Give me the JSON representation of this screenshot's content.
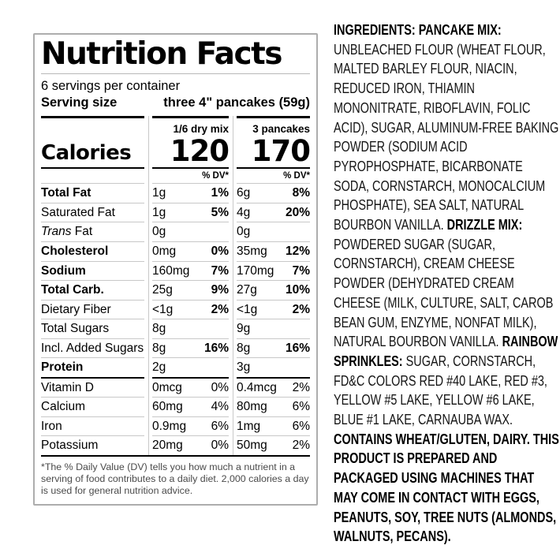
{
  "nutrition_label": {
    "title": "Nutrition Facts",
    "servings_per_container": "6 servings per container",
    "serving_size_label": "Serving size",
    "serving_size_value": "three 4\" pancakes (59g)",
    "columns": [
      "1/6 dry mix",
      "3 pancakes"
    ],
    "calories_label": "Calories",
    "calories": [
      "120",
      "170"
    ],
    "dv_header": "% DV*",
    "rows": [
      {
        "name": "Total Fat",
        "bold": true,
        "indent": 0,
        "c1a": "1g",
        "c1dv": "1%",
        "c2a": "6g",
        "c2dv": "8%"
      },
      {
        "name": "Saturated Fat",
        "bold": false,
        "indent": 1,
        "c1a": "1g",
        "c1dv": "5%",
        "c2a": "4g",
        "c2dv": "20%"
      },
      {
        "name": "Fat",
        "name_italic": "Trans",
        "bold": false,
        "indent": 1,
        "c1a": "0g",
        "c1dv": "",
        "c2a": "0g",
        "c2dv": ""
      },
      {
        "name": "Cholesterol",
        "bold": true,
        "indent": 0,
        "c1a": "0mg",
        "c1dv": "0%",
        "c2a": "35mg",
        "c2dv": "12%"
      },
      {
        "name": "Sodium",
        "bold": true,
        "indent": 0,
        "c1a": "160mg",
        "c1dv": "7%",
        "c2a": "170mg",
        "c2dv": "7%"
      },
      {
        "name": "Total Carb.",
        "bold": true,
        "indent": 0,
        "c1a": "25g",
        "c1dv": "9%",
        "c2a": "27g",
        "c2dv": "10%"
      },
      {
        "name": "Dietary Fiber",
        "bold": false,
        "indent": 1,
        "c1a": "<1g",
        "c1dv": "2%",
        "c2a": "<1g",
        "c2dv": "2%"
      },
      {
        "name": "Total Sugars",
        "bold": false,
        "indent": 1,
        "c1a": "8g",
        "c1dv": "",
        "c2a": "9g",
        "c2dv": ""
      },
      {
        "name": "Incl. Added Sugars",
        "bold": false,
        "indent": 2,
        "c1a": "8g",
        "c1dv": "16%",
        "c2a": "8g",
        "c2dv": "16%"
      },
      {
        "name": "Protein",
        "bold": true,
        "indent": 0,
        "thick": true,
        "c1a": "2g",
        "c1dv": "",
        "c2a": "3g",
        "c2dv": ""
      }
    ],
    "vitamin_rows": [
      {
        "name": "Vitamin D",
        "c1a": "0mcg",
        "c1dv": "0%",
        "c2a": "0.4mcg",
        "c2dv": "2%"
      },
      {
        "name": "Calcium",
        "c1a": "60mg",
        "c1dv": "4%",
        "c2a": "80mg",
        "c2dv": "6%"
      },
      {
        "name": "Iron",
        "c1a": "0.9mg",
        "c1dv": "6%",
        "c2a": "1mg",
        "c2dv": "6%"
      },
      {
        "name": "Potassium",
        "c1a": "20mg",
        "c1dv": "0%",
        "c2a": "50mg",
        "c2dv": "2%"
      }
    ],
    "footnote": "*The % Daily Value (DV) tells you how much a nutrient in a serving of food contributes to a daily diet. 2,000 calories a day is used for general nutrition advice."
  },
  "ingredients": {
    "segments": [
      {
        "text": "INGREDIENTS: PANCAKE MIX:",
        "bold": true
      },
      {
        "text": " UNBLEACHED FLOUR (WHEAT FLOUR, MALTED BARLEY FLOUR, NIACIN, REDUCED IRON, THIAMIN MONONITRATE, RIBOFLAVIN, FOLIC ACID), SUGAR, ALUMINUM-FREE BAKING POWDER (SODIUM ACID PYROPHOSPHATE, BICARBONATE SODA, CORNSTARCH, MONOCALCIUM PHOSPHATE), SEA SALT, NATURAL BOURBON VANILLA. ",
        "bold": false
      },
      {
        "text": "DRIZZLE MIX:",
        "bold": true
      },
      {
        "text": " POWDERED SUGAR (SUGAR, CORNSTARCH), CREAM CHEESE POWDER (DEHYDRATED CREAM CHEESE (MILK, CULTURE, SALT, CAROB BEAN GUM, ENZYME, NONFAT MILK), NATURAL BOURBON VANILLA. ",
        "bold": false
      },
      {
        "text": "RAINBOW SPRINKLES:",
        "bold": true
      },
      {
        "text": " SUGAR, CORNSTARCH, FD&C COLORS RED #40 LAKE, RED #3, YELLOW #5 LAKE, YELLOW #6 LAKE, BLUE #1 LAKE, CARNAUBA WAX. ",
        "bold": false
      },
      {
        "text": "CONTAINS WHEAT/GLUTEN, DAIRY. THIS PRODUCT IS PREPARED AND PACKAGED USING MACHINES THAT MAY COME IN CONTACT WITH EGGS, PEANUTS, SOY, TREE NUTS (ALMONDS, WALNUTS, PECANS).",
        "bold": true
      }
    ]
  },
  "colors": {
    "text": "#000000",
    "hairline": "#c8c8c8",
    "thick_bar": "#000000",
    "label_border": "#adadad",
    "footnote_text": "#4a4a4a"
  }
}
